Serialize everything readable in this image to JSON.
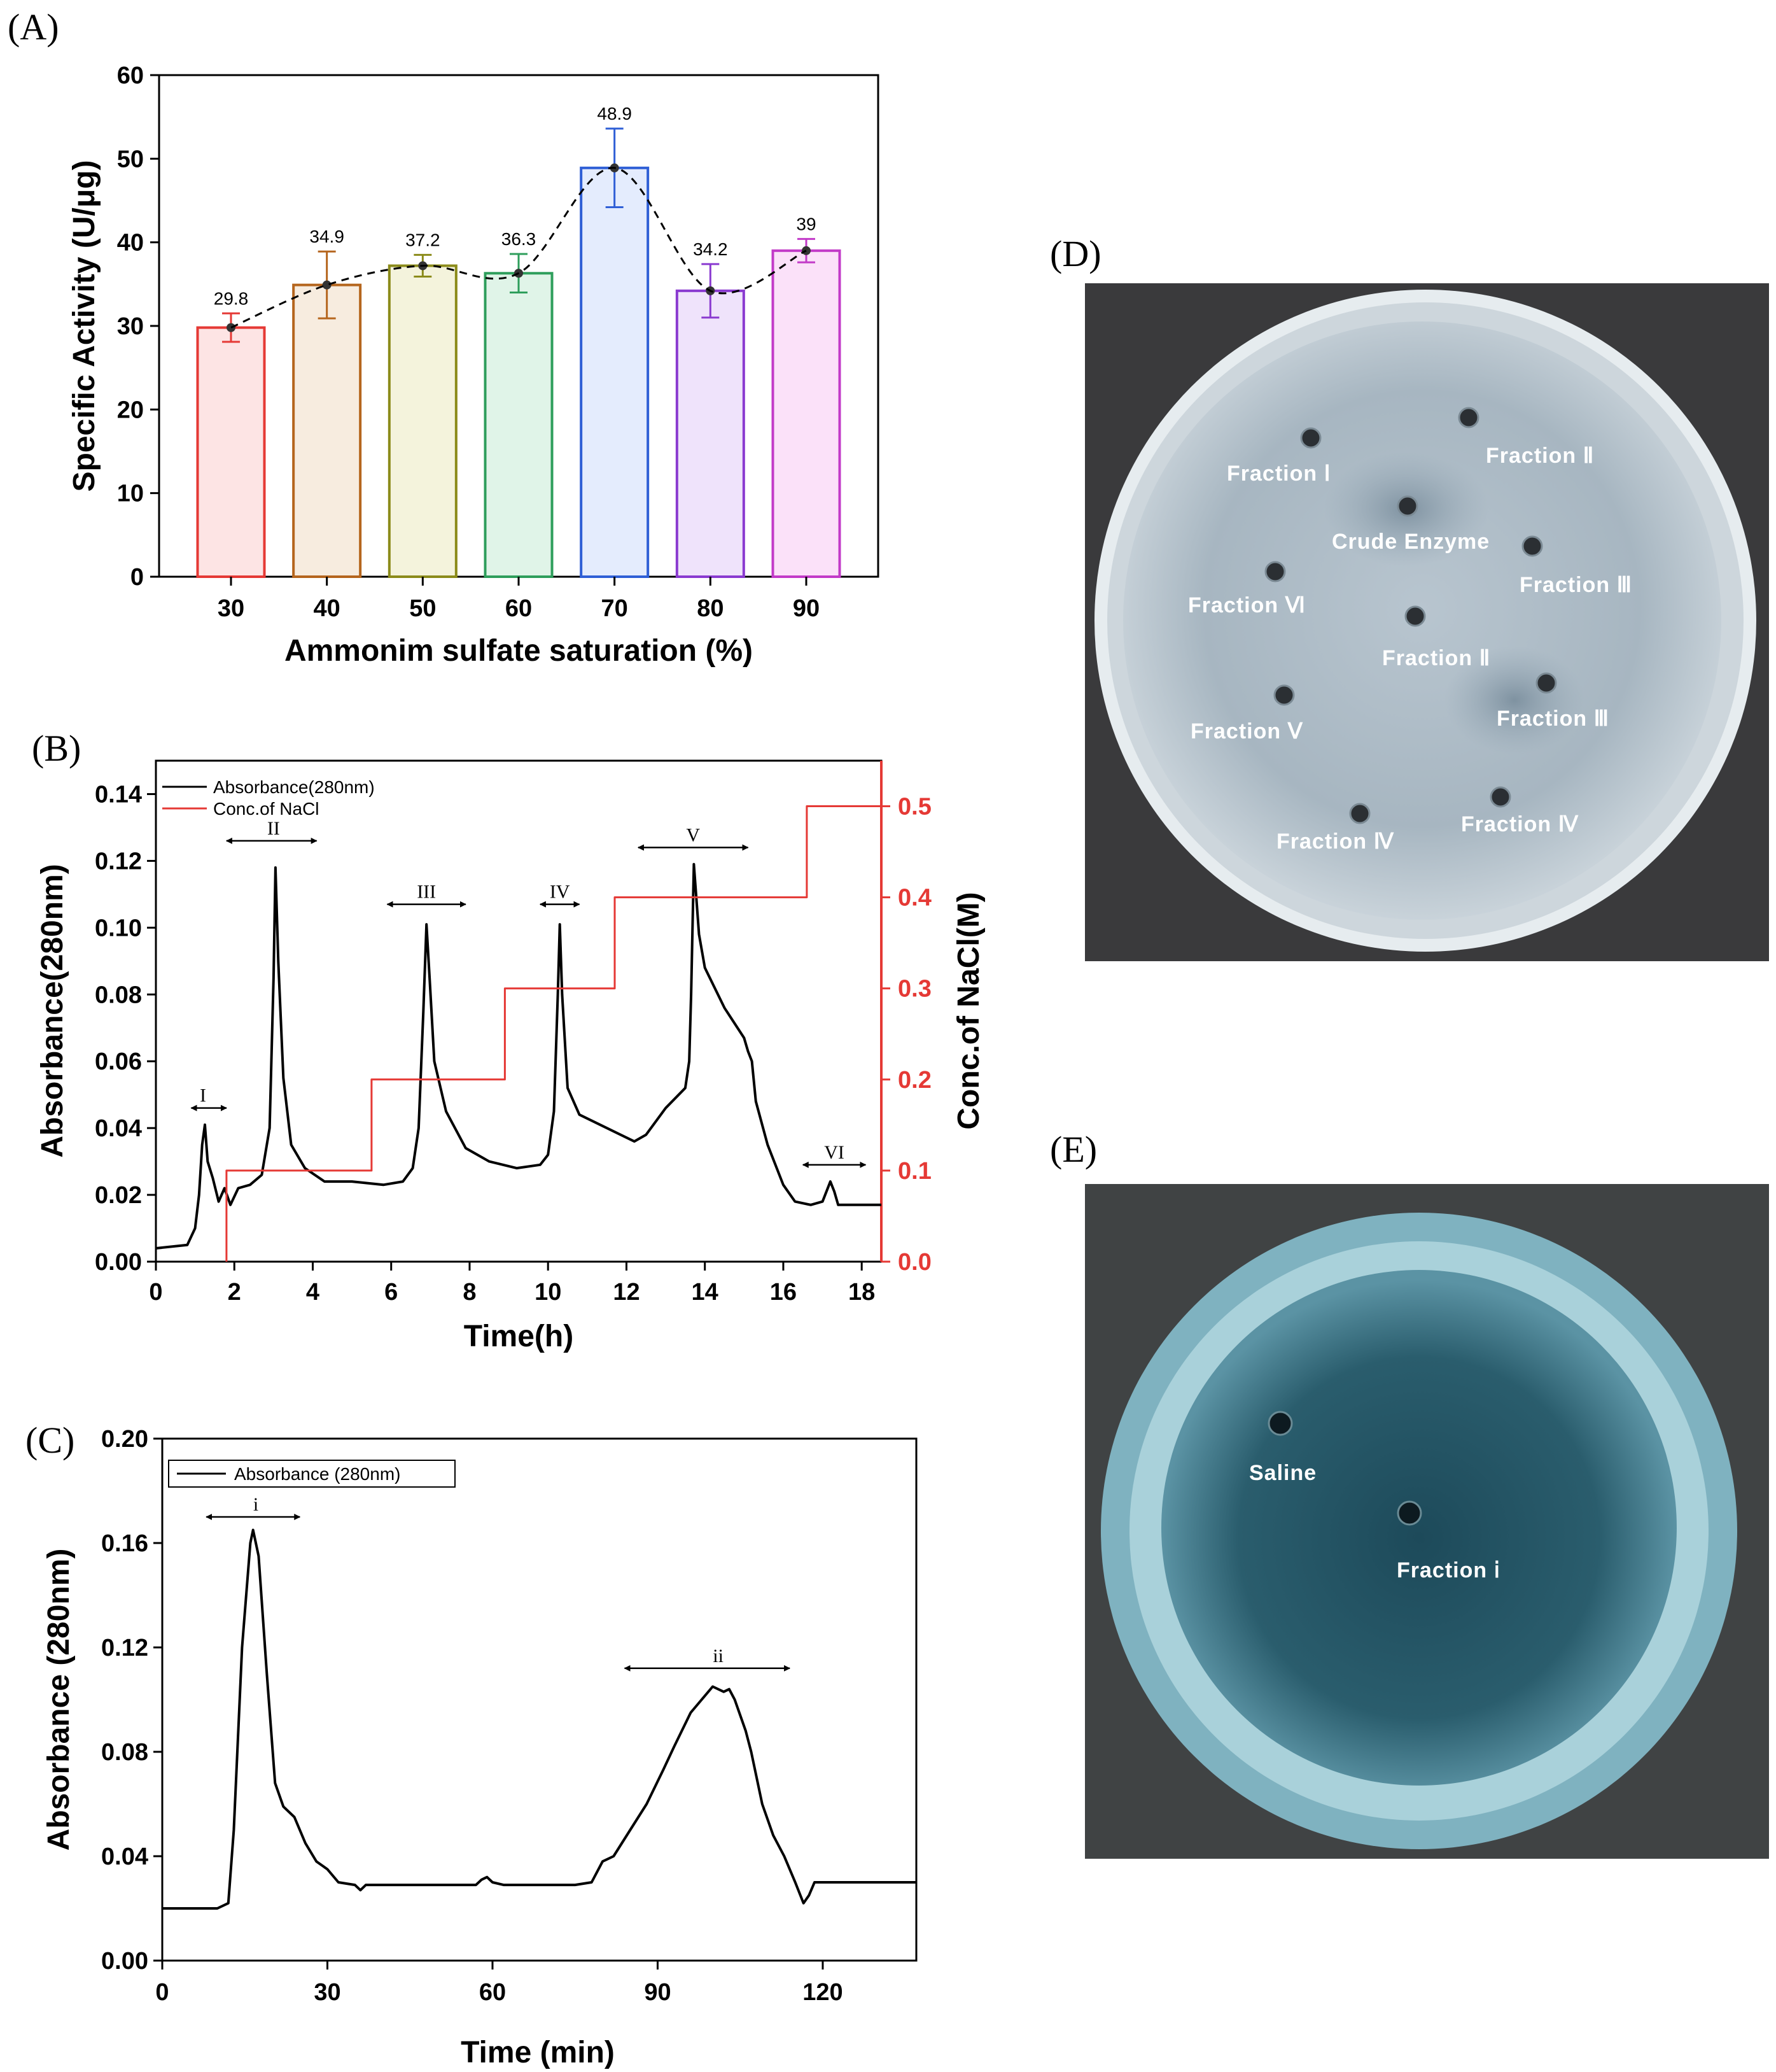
{
  "chart_data": [
    {
      "panel": "(A)",
      "type": "bar",
      "xlabel": "Ammonim sulfate saturation (%)",
      "ylabel": "Specific Activity (U/μg)",
      "categories": [
        "30",
        "40",
        "50",
        "60",
        "70",
        "80",
        "90"
      ],
      "values": [
        29.8,
        34.9,
        37.2,
        36.3,
        48.9,
        34.2,
        39
      ],
      "value_labels": [
        "29.8",
        "34.9",
        "37.2",
        "36.3",
        "48.9",
        "34.2",
        "39"
      ],
      "errors": [
        1.7,
        4.0,
        1.3,
        2.3,
        4.7,
        3.2,
        1.4
      ],
      "colors": [
        "#e53935",
        "#b5651d",
        "#8b8b1a",
        "#2e9e5b",
        "#2f5fd6",
        "#8a3ad0",
        "#c23ac8"
      ],
      "fills": [
        "#fde4e4",
        "#f7ecdf",
        "#f4f3dc",
        "#e0f4e8",
        "#e4ecfd",
        "#efe3fb",
        "#fbe1f9"
      ],
      "ylim": [
        0,
        60
      ],
      "yticks": [
        "0",
        "10",
        "20",
        "30",
        "40",
        "50",
        "60"
      ],
      "trend": "dashed smooth curve"
    },
    {
      "panel": "(B)",
      "type": "line",
      "xlabel": "Time(h)",
      "ylabel": "Absorbance(280nm)",
      "y2label": "Conc.of NaCl(M)",
      "xlim": [
        0,
        18.5
      ],
      "ylim": [
        0,
        0.15
      ],
      "y2lim": [
        0,
        0.55
      ],
      "xticks": [
        "0",
        "2",
        "4",
        "6",
        "8",
        "10",
        "12",
        "14",
        "16",
        "18"
      ],
      "yticks": [
        "0.00",
        "0.02",
        "0.04",
        "0.06",
        "0.08",
        "0.10",
        "0.12",
        "0.14"
      ],
      "y2ticks": [
        "0.0",
        "0.1",
        "0.2",
        "0.3",
        "0.4",
        "0.5"
      ],
      "legend": [
        "Absorbance(280nm)",
        "Conc.of NaCl"
      ],
      "legend_position": "top-left",
      "series": [
        {
          "name": "Absorbance(280nm)",
          "color": "#000000",
          "points": [
            [
              0,
              0.004
            ],
            [
              0.8,
              0.005
            ],
            [
              1.0,
              0.01
            ],
            [
              1.1,
              0.02
            ],
            [
              1.18,
              0.035
            ],
            [
              1.25,
              0.041
            ],
            [
              1.32,
              0.03
            ],
            [
              1.45,
              0.025
            ],
            [
              1.6,
              0.018
            ],
            [
              1.75,
              0.022
            ],
            [
              1.9,
              0.017
            ],
            [
              2.1,
              0.022
            ],
            [
              2.4,
              0.023
            ],
            [
              2.7,
              0.026
            ],
            [
              2.9,
              0.04
            ],
            [
              3.0,
              0.085
            ],
            [
              3.05,
              0.118
            ],
            [
              3.12,
              0.09
            ],
            [
              3.25,
              0.055
            ],
            [
              3.45,
              0.035
            ],
            [
              3.8,
              0.028
            ],
            [
              4.3,
              0.024
            ],
            [
              5.0,
              0.024
            ],
            [
              5.8,
              0.023
            ],
            [
              6.3,
              0.024
            ],
            [
              6.55,
              0.028
            ],
            [
              6.7,
              0.04
            ],
            [
              6.82,
              0.075
            ],
            [
              6.9,
              0.101
            ],
            [
              6.98,
              0.085
            ],
            [
              7.1,
              0.06
            ],
            [
              7.4,
              0.045
            ],
            [
              7.9,
              0.034
            ],
            [
              8.5,
              0.03
            ],
            [
              9.2,
              0.028
            ],
            [
              9.8,
              0.029
            ],
            [
              10.0,
              0.032
            ],
            [
              10.15,
              0.045
            ],
            [
              10.25,
              0.08
            ],
            [
              10.3,
              0.101
            ],
            [
              10.36,
              0.08
            ],
            [
              10.5,
              0.052
            ],
            [
              10.8,
              0.044
            ],
            [
              11.5,
              0.04
            ],
            [
              12.2,
              0.036
            ],
            [
              12.5,
              0.038
            ],
            [
              13.0,
              0.046
            ],
            [
              13.5,
              0.052
            ],
            [
              13.6,
              0.06
            ],
            [
              13.65,
              0.08
            ],
            [
              13.72,
              0.119
            ],
            [
              13.85,
              0.098
            ],
            [
              14.0,
              0.088
            ],
            [
              14.5,
              0.076
            ],
            [
              15.0,
              0.067
            ],
            [
              15.1,
              0.063
            ],
            [
              15.2,
              0.06
            ],
            [
              15.3,
              0.048
            ],
            [
              15.6,
              0.035
            ],
            [
              16.0,
              0.023
            ],
            [
              16.3,
              0.018
            ],
            [
              16.7,
              0.017
            ],
            [
              17.0,
              0.018
            ],
            [
              17.2,
              0.024
            ],
            [
              17.3,
              0.021
            ],
            [
              17.4,
              0.017
            ],
            [
              18.5,
              0.017
            ]
          ]
        },
        {
          "name": "Conc.of NaCl",
          "color": "#e53935",
          "axis": "right",
          "points": [
            [
              1.8,
              0.0
            ],
            [
              1.8,
              0.1
            ],
            [
              5.5,
              0.1
            ],
            [
              5.5,
              0.2
            ],
            [
              8.9,
              0.2
            ],
            [
              8.9,
              0.3
            ],
            [
              11.7,
              0.3
            ],
            [
              11.7,
              0.4
            ],
            [
              16.6,
              0.4
            ],
            [
              16.6,
              0.5
            ],
            [
              18.5,
              0.5
            ]
          ]
        }
      ],
      "peak_labels": [
        {
          "label": "I",
          "x": 1.2,
          "y": 0.046,
          "from": 0.9,
          "to": 1.8
        },
        {
          "label": "II",
          "x": 3.0,
          "y": 0.126,
          "from": 1.8,
          "to": 4.1
        },
        {
          "label": "III",
          "x": 6.9,
          "y": 0.107,
          "from": 5.9,
          "to": 7.9
        },
        {
          "label": "IV",
          "x": 10.3,
          "y": 0.107,
          "from": 9.8,
          "to": 10.8
        },
        {
          "label": "V",
          "x": 13.7,
          "y": 0.124,
          "from": 12.3,
          "to": 15.1
        },
        {
          "label": "VI",
          "x": 17.3,
          "y": 0.029,
          "from": 16.5,
          "to": 18.1
        }
      ]
    },
    {
      "panel": "(C)",
      "type": "line",
      "xlabel": "Time (min)",
      "ylabel": "Absorbance (280nm)",
      "xlim": [
        0,
        137
      ],
      "ylim": [
        0,
        0.2
      ],
      "xticks": [
        "0",
        "30",
        "60",
        "90",
        "120"
      ],
      "yticks": [
        "0.00",
        "0.04",
        "0.08",
        "0.12",
        "0.16",
        "0.20"
      ],
      "legend": [
        "Absorbance (280nm)"
      ],
      "legend_position": "top-left",
      "series": [
        {
          "name": "Absorbance (280nm)",
          "color": "#000000",
          "points": [
            [
              0,
              0.02
            ],
            [
              10,
              0.02
            ],
            [
              12,
              0.022
            ],
            [
              13,
              0.05
            ],
            [
              14.5,
              0.12
            ],
            [
              16,
              0.16
            ],
            [
              16.5,
              0.165
            ],
            [
              17.5,
              0.155
            ],
            [
              19,
              0.11
            ],
            [
              20.5,
              0.068
            ],
            [
              22,
              0.059
            ],
            [
              24,
              0.055
            ],
            [
              26,
              0.045
            ],
            [
              28,
              0.038
            ],
            [
              30,
              0.035
            ],
            [
              32,
              0.03
            ],
            [
              35,
              0.029
            ],
            [
              36,
              0.027
            ],
            [
              37,
              0.029
            ],
            [
              40,
              0.029
            ],
            [
              57,
              0.029
            ],
            [
              58,
              0.031
            ],
            [
              59,
              0.032
            ],
            [
              60,
              0.03
            ],
            [
              62,
              0.029
            ],
            [
              66,
              0.029
            ],
            [
              70,
              0.029
            ],
            [
              75,
              0.029
            ],
            [
              78,
              0.03
            ],
            [
              80,
              0.038
            ],
            [
              82,
              0.04
            ],
            [
              85,
              0.05
            ],
            [
              88,
              0.06
            ],
            [
              91,
              0.073
            ],
            [
              93,
              0.082
            ],
            [
              96,
              0.095
            ],
            [
              98,
              0.1
            ],
            [
              100,
              0.105
            ],
            [
              102,
              0.103
            ],
            [
              103,
              0.104
            ],
            [
              104,
              0.1
            ],
            [
              106,
              0.088
            ],
            [
              107,
              0.08
            ],
            [
              109,
              0.06
            ],
            [
              111,
              0.048
            ],
            [
              113,
              0.04
            ],
            [
              115,
              0.03
            ],
            [
              116.5,
              0.022
            ],
            [
              117.5,
              0.025
            ],
            [
              118.5,
              0.03
            ],
            [
              137,
              0.03
            ]
          ]
        }
      ],
      "peak_labels": [
        {
          "label": "i",
          "x": 17,
          "y": 0.17,
          "from": 8,
          "to": 25
        },
        {
          "label": "ii",
          "x": 101,
          "y": 0.112,
          "from": 84,
          "to": 114
        }
      ]
    }
  ],
  "photos": {
    "d": {
      "panel": "(D)",
      "labels": [
        "Fraction Ⅰ",
        "Fraction Ⅱ",
        "Crude Enzyme",
        "Fraction Ⅲ",
        "Fraction Ⅵ",
        "Fraction Ⅱ",
        "Fraction Ⅴ",
        "Fraction Ⅲ",
        "Fraction Ⅳ",
        "Fraction Ⅳ"
      ]
    },
    "e": {
      "panel": "(E)",
      "labels": [
        "Saline",
        "Fraction ⅰ"
      ]
    }
  }
}
